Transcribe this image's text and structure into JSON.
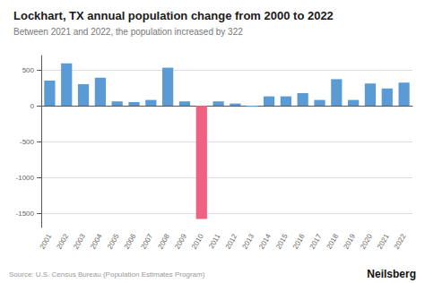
{
  "chart_data": {
    "type": "bar",
    "title": "Lockhart, TX annual population change from 2000 to 2022",
    "subtitle": "Between 2021 and 2022, the population increased by 322",
    "annotations": [
      "Source: U.S. Census Bureau (Population Estimates Program)",
      "Neilsberg"
    ],
    "categories": [
      "2001",
      "2002",
      "2003",
      "2004",
      "2005",
      "2006",
      "2007",
      "2008",
      "2009",
      "2010",
      "2011",
      "2012",
      "2013",
      "2014",
      "2015",
      "2016",
      "2017",
      "2018",
      "2019",
      "2020",
      "2021",
      "2022"
    ],
    "values": [
      350,
      590,
      300,
      390,
      60,
      50,
      80,
      530,
      60,
      -1580,
      60,
      30,
      -15,
      130,
      130,
      175,
      80,
      370,
      80,
      310,
      240,
      322
    ],
    "colors": [
      "#5b9bd5",
      "#5b9bd5",
      "#5b9bd5",
      "#5b9bd5",
      "#5b9bd5",
      "#5b9bd5",
      "#5b9bd5",
      "#5b9bd5",
      "#5b9bd5",
      "#f06080",
      "#5b9bd5",
      "#5b9bd5",
      "#5b9bd5",
      "#5b9bd5",
      "#5b9bd5",
      "#5b9bd5",
      "#5b9bd5",
      "#5b9bd5",
      "#5b9bd5",
      "#5b9bd5",
      "#5b9bd5",
      "#5b9bd5"
    ],
    "ylim": [
      -1700,
      700
    ],
    "yticks": [
      -1500,
      -1000,
      -500,
      0,
      500
    ],
    "grid": true
  }
}
